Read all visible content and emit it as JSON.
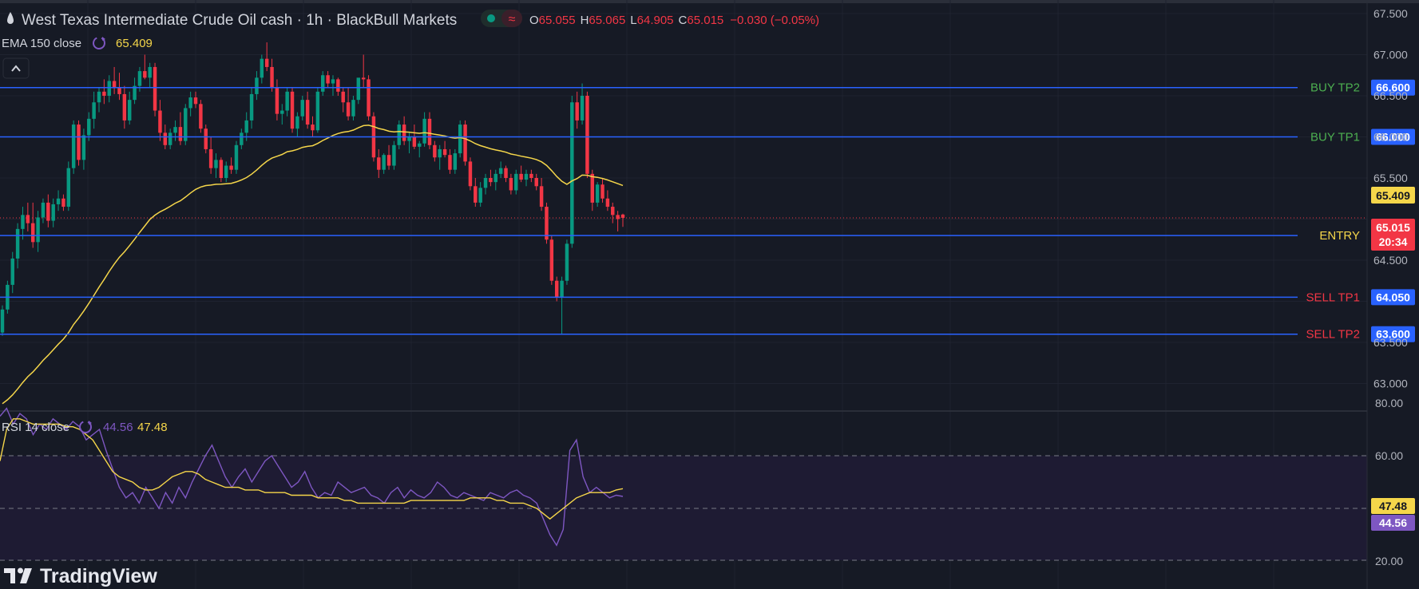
{
  "header": {
    "symbol_title": "West Texas Intermediate Crude Oil cash · 1h · BlackBull Markets",
    "ohlc": {
      "o_label": "O",
      "o_value": "65.055",
      "h_label": "H",
      "h_value": "65.065",
      "l_label": "L",
      "l_value": "64.905",
      "c_label": "C",
      "c_value": "65.015",
      "change": "−0.030 (−0.05%)"
    },
    "market_status_icon": "dot-icon",
    "delay_icon": "approx-icon"
  },
  "ema": {
    "label": "EMA 150 close",
    "value": "65.409",
    "color": "#f5d64a"
  },
  "rsi": {
    "label": "RSI 14 close",
    "value_rsi": "44.56",
    "value_ma": "47.48",
    "rsi_color": "#7e57c2",
    "ma_color": "#f5d64a"
  },
  "collapse_icon": "chevron-up-icon",
  "price_axis": [
    "67.500",
    "67.000",
    "66.500",
    "66.000",
    "65.500",
    "64.500",
    "63.500",
    "63.000"
  ],
  "rsi_axis": [
    "80.00",
    "60.00",
    "40.00",
    "20.00"
  ],
  "levels": [
    {
      "name": "BUY TP2",
      "price": 66.6,
      "tag": "66.600",
      "label_color": "#4caf50"
    },
    {
      "name": "BUY TP1",
      "price": 66.0,
      "tag": "66.000",
      "label_color": "#4caf50"
    },
    {
      "name": "ENTRY",
      "price": 64.8,
      "tag": "64.800",
      "label_color": "#f5d64a"
    },
    {
      "name": "SELL TP1",
      "price": 64.05,
      "tag": "64.050",
      "label_color": "#f23645"
    },
    {
      "name": "SELL TP2",
      "price": 63.6,
      "tag": "63.600",
      "label_color": "#f23645"
    }
  ],
  "tags": {
    "ema_tag": "65.409",
    "last_price": "65.015",
    "countdown": "20:34",
    "rsi_ma_tag": "47.48",
    "rsi_tag": "44.56"
  },
  "colors": {
    "up": "#089981",
    "down": "#f23645",
    "level_line": "#2962ff",
    "background": "#161a25"
  },
  "branding": {
    "logo_text": "TradingView",
    "logo_icon": "tradingview-logo-icon"
  },
  "chart_data": {
    "type": "candlestick",
    "timeframe": "1h",
    "ylim": [
      62.9,
      67.65
    ],
    "last_close": 65.015,
    "ema_period": 150,
    "ema_last": 65.409,
    "candles": [
      [
        63.62,
        63.95,
        63.58,
        63.9
      ],
      [
        63.9,
        64.25,
        63.85,
        64.2
      ],
      [
        64.2,
        64.6,
        64.1,
        64.52
      ],
      [
        64.52,
        64.95,
        64.4,
        64.88
      ],
      [
        64.88,
        65.15,
        64.75,
        65.05
      ],
      [
        65.05,
        65.2,
        64.85,
        64.95
      ],
      [
        64.95,
        65.2,
        64.65,
        64.72
      ],
      [
        64.72,
        65.1,
        64.6,
        65.02
      ],
      [
        65.02,
        65.25,
        64.95,
        65.2
      ],
      [
        65.2,
        65.3,
        64.9,
        64.98
      ],
      [
        64.98,
        65.25,
        64.9,
        65.18
      ],
      [
        65.18,
        65.35,
        65.1,
        65.25
      ],
      [
        65.25,
        65.3,
        65.1,
        65.15
      ],
      [
        65.15,
        65.7,
        65.1,
        65.62
      ],
      [
        65.62,
        66.2,
        65.55,
        66.15
      ],
      [
        66.15,
        66.2,
        65.65,
        65.72
      ],
      [
        65.72,
        66.1,
        65.6,
        66.02
      ],
      [
        66.02,
        66.3,
        65.95,
        66.22
      ],
      [
        66.22,
        66.55,
        66.1,
        66.42
      ],
      [
        66.42,
        66.6,
        66.3,
        66.55
      ],
      [
        66.55,
        66.7,
        66.4,
        66.5
      ],
      [
        66.5,
        66.75,
        66.42,
        66.68
      ],
      [
        66.68,
        66.85,
        66.52,
        66.6
      ],
      [
        66.6,
        66.78,
        66.45,
        66.52
      ],
      [
        66.52,
        66.62,
        66.1,
        66.2
      ],
      [
        66.2,
        66.55,
        66.15,
        66.45
      ],
      [
        66.45,
        66.72,
        66.4,
        66.62
      ],
      [
        66.62,
        66.85,
        66.55,
        66.8
      ],
      [
        66.8,
        67.0,
        66.7,
        66.72
      ],
      [
        66.72,
        66.9,
        66.6,
        66.85
      ],
      [
        66.85,
        66.9,
        66.25,
        66.32
      ],
      [
        66.32,
        66.45,
        65.95,
        66.05
      ],
      [
        66.05,
        66.15,
        65.85,
        65.9
      ],
      [
        65.9,
        66.1,
        65.85,
        66.05
      ],
      [
        66.05,
        66.2,
        65.95,
        66.12
      ],
      [
        66.12,
        66.3,
        65.9,
        65.95
      ],
      [
        65.95,
        66.4,
        65.9,
        66.35
      ],
      [
        66.35,
        66.55,
        66.25,
        66.48
      ],
      [
        66.48,
        66.55,
        66.35,
        66.4
      ],
      [
        66.4,
        66.45,
        66.05,
        66.1
      ],
      [
        66.1,
        66.15,
        65.8,
        65.85
      ],
      [
        65.85,
        66.0,
        65.55,
        65.62
      ],
      [
        65.62,
        65.8,
        65.5,
        65.72
      ],
      [
        65.72,
        65.75,
        65.45,
        65.5
      ],
      [
        65.5,
        65.7,
        65.45,
        65.65
      ],
      [
        65.65,
        65.75,
        65.55,
        65.6
      ],
      [
        65.6,
        65.95,
        65.55,
        65.9
      ],
      [
        65.9,
        66.1,
        65.85,
        66.05
      ],
      [
        66.05,
        66.3,
        65.95,
        66.2
      ],
      [
        66.2,
        66.6,
        66.1,
        66.52
      ],
      [
        66.52,
        66.8,
        66.45,
        66.72
      ],
      [
        66.72,
        67.0,
        66.65,
        66.95
      ],
      [
        66.95,
        67.15,
        66.8,
        66.85
      ],
      [
        66.85,
        66.95,
        66.55,
        66.6
      ],
      [
        66.6,
        66.7,
        66.2,
        66.28
      ],
      [
        66.28,
        66.4,
        66.15,
        66.32
      ],
      [
        66.32,
        66.6,
        66.25,
        66.55
      ],
      [
        66.55,
        66.6,
        66.05,
        66.1
      ],
      [
        66.1,
        66.3,
        66.0,
        66.25
      ],
      [
        66.25,
        66.5,
        66.2,
        66.45
      ],
      [
        66.45,
        66.55,
        66.1,
        66.15
      ],
      [
        66.15,
        66.25,
        66.0,
        66.08
      ],
      [
        66.08,
        66.6,
        66.05,
        66.55
      ],
      [
        66.55,
        66.8,
        66.5,
        66.75
      ],
      [
        66.75,
        66.8,
        66.6,
        66.65
      ],
      [
        66.65,
        66.75,
        66.5,
        66.7
      ],
      [
        66.7,
        66.72,
        66.5,
        66.55
      ],
      [
        66.55,
        66.6,
        66.3,
        66.42
      ],
      [
        66.42,
        66.6,
        66.2,
        66.25
      ],
      [
        66.25,
        66.5,
        66.2,
        66.45
      ],
      [
        66.45,
        66.7,
        66.4,
        66.72
      ],
      [
        66.72,
        67.0,
        66.6,
        66.7
      ],
      [
        66.7,
        66.75,
        66.2,
        66.25
      ],
      [
        66.25,
        66.3,
        65.7,
        65.75
      ],
      [
        65.75,
        65.85,
        65.5,
        65.6
      ],
      [
        65.6,
        65.8,
        65.55,
        65.78
      ],
      [
        65.78,
        65.9,
        65.6,
        65.65
      ],
      [
        65.65,
        65.95,
        65.6,
        65.9
      ],
      [
        65.9,
        66.2,
        65.85,
        66.15
      ],
      [
        66.15,
        66.25,
        65.9,
        65.95
      ],
      [
        65.95,
        66.05,
        65.8,
        66.0
      ],
      [
        66.0,
        66.15,
        65.85,
        65.88
      ],
      [
        65.88,
        65.95,
        65.75,
        65.92
      ],
      [
        65.92,
        66.3,
        65.88,
        66.22
      ],
      [
        66.22,
        66.3,
        65.85,
        65.9
      ],
      [
        65.9,
        65.95,
        65.7,
        65.75
      ],
      [
        65.75,
        65.9,
        65.6,
        65.85
      ],
      [
        65.85,
        65.95,
        65.75,
        65.78
      ],
      [
        65.78,
        65.85,
        65.55,
        65.6
      ],
      [
        65.6,
        65.85,
        65.55,
        65.8
      ],
      [
        65.8,
        66.2,
        65.75,
        66.15
      ],
      [
        66.15,
        66.2,
        65.65,
        65.7
      ],
      [
        65.7,
        65.75,
        65.35,
        65.4
      ],
      [
        65.4,
        65.5,
        65.15,
        65.2
      ],
      [
        65.2,
        65.45,
        65.15,
        65.38
      ],
      [
        65.38,
        65.55,
        65.3,
        65.5
      ],
      [
        65.5,
        65.6,
        65.4,
        65.45
      ],
      [
        65.45,
        65.6,
        65.35,
        65.55
      ],
      [
        65.55,
        65.7,
        65.5,
        65.62
      ],
      [
        65.62,
        65.65,
        65.45,
        65.5
      ],
      [
        65.5,
        65.55,
        65.3,
        65.35
      ],
      [
        65.35,
        65.6,
        65.3,
        65.55
      ],
      [
        65.55,
        65.65,
        65.45,
        65.48
      ],
      [
        65.48,
        65.6,
        65.4,
        65.55
      ],
      [
        65.55,
        65.6,
        65.45,
        65.5
      ],
      [
        65.5,
        65.55,
        65.35,
        65.4
      ],
      [
        65.4,
        65.5,
        65.1,
        65.15
      ],
      [
        65.15,
        65.2,
        64.7,
        64.75
      ],
      [
        64.75,
        64.8,
        64.2,
        64.25
      ],
      [
        64.25,
        64.3,
        64.0,
        64.05
      ],
      [
        64.05,
        64.3,
        63.6,
        64.25
      ],
      [
        64.25,
        64.75,
        64.2,
        64.7
      ],
      [
        64.7,
        66.5,
        64.65,
        66.42
      ],
      [
        66.42,
        66.55,
        66.1,
        66.2
      ],
      [
        66.2,
        66.65,
        66.15,
        66.5
      ],
      [
        66.5,
        66.55,
        65.5,
        65.55
      ],
      [
        65.55,
        65.6,
        65.1,
        65.2
      ],
      [
        65.2,
        65.45,
        65.15,
        65.42
      ],
      [
        65.42,
        65.5,
        65.2,
        65.25
      ],
      [
        65.25,
        65.35,
        65.1,
        65.15
      ],
      [
        65.15,
        65.2,
        64.95,
        65.05
      ],
      [
        65.05,
        65.1,
        64.85,
        65.0
      ],
      [
        65.055,
        65.065,
        64.905,
        65.015
      ]
    ],
    "rsi": [
      75,
      78,
      72,
      76,
      74,
      68,
      72,
      70,
      74,
      72,
      70,
      73,
      71,
      66,
      68,
      70,
      62,
      55,
      48,
      44,
      46,
      42,
      48,
      44,
      40,
      46,
      42,
      48,
      44,
      50,
      55,
      60,
      64,
      58,
      52,
      48,
      52,
      55,
      50,
      54,
      58,
      60,
      56,
      52,
      48,
      50,
      54,
      48,
      44,
      46,
      45,
      50,
      48,
      46,
      47,
      48,
      45,
      44,
      42,
      46,
      48,
      44,
      47,
      45,
      44,
      46,
      50,
      48,
      45,
      44,
      46,
      45,
      44,
      43,
      46,
      45,
      44,
      46,
      47,
      45,
      44,
      42,
      36,
      30,
      26,
      32,
      62,
      66,
      52,
      46,
      48,
      46,
      44,
      45,
      44.56
    ],
    "rsi_ma": [
      58,
      70,
      74,
      74,
      73,
      72,
      72,
      72,
      72,
      72,
      71,
      71,
      70,
      68,
      66,
      62,
      58,
      54,
      52,
      51,
      50,
      48,
      47,
      47,
      48,
      50,
      52,
      53,
      54,
      54,
      53,
      51,
      50,
      49,
      48,
      48,
      48,
      47,
      47,
      47,
      46,
      46,
      46,
      46,
      45,
      45,
      45,
      45,
      44,
      44,
      44,
      44,
      43,
      43,
      42,
      42,
      42,
      42,
      42,
      42,
      42,
      42,
      43,
      43,
      43,
      43,
      43,
      43,
      43,
      43,
      43,
      44,
      44,
      44,
      44,
      43,
      43,
      42,
      42,
      42,
      41,
      40,
      38,
      36,
      38,
      40,
      42,
      44,
      45,
      46,
      46,
      46,
      46,
      47,
      47.48
    ]
  }
}
